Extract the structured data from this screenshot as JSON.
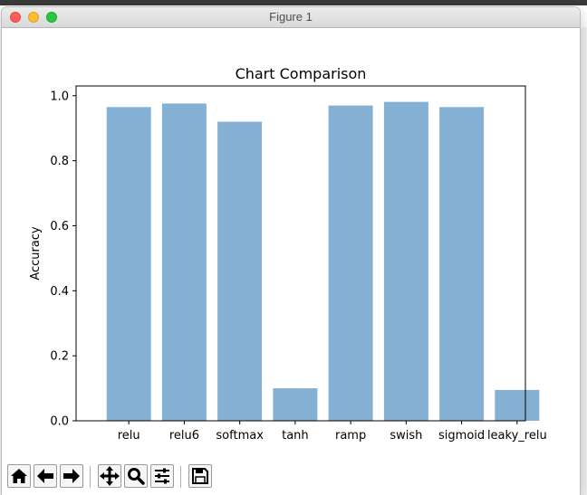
{
  "window": {
    "title": "Figure 1"
  },
  "toolbar": {
    "buttons": [
      {
        "icon": "home-icon"
      },
      {
        "icon": "back-arrow-icon"
      },
      {
        "icon": "forward-arrow-icon"
      },
      {
        "icon": "pan-move-icon"
      },
      {
        "icon": "zoom-magnifier-icon"
      },
      {
        "icon": "configure-subplots-icon"
      },
      {
        "icon": "save-disk-icon"
      }
    ]
  },
  "chart_data": {
    "type": "bar",
    "title": "Chart Comparison",
    "xlabel": "",
    "ylabel": "Accuracy",
    "categories": [
      "relu",
      "relu6",
      "softmax",
      "tanh",
      "ramp",
      "swish",
      "sigmoid",
      "leaky_relu"
    ],
    "values": [
      0.965,
      0.976,
      0.92,
      0.1,
      0.97,
      0.981,
      0.965,
      0.095
    ],
    "ylim": [
      0,
      1.03
    ],
    "yticks": [
      "0.0",
      "0.2",
      "0.4",
      "0.6",
      "0.8",
      "1.0"
    ],
    "grid": false,
    "bar_color": "#84b0d4"
  }
}
